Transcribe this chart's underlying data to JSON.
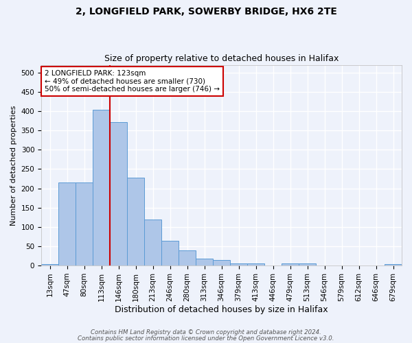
{
  "title": "2, LONGFIELD PARK, SOWERBY BRIDGE, HX6 2TE",
  "subtitle": "Size of property relative to detached houses in Halifax",
  "xlabel": "Distribution of detached houses by size in Halifax",
  "ylabel": "Number of detached properties",
  "categories": [
    "13sqm",
    "47sqm",
    "80sqm",
    "113sqm",
    "146sqm",
    "180sqm",
    "213sqm",
    "246sqm",
    "280sqm",
    "313sqm",
    "346sqm",
    "379sqm",
    "413sqm",
    "446sqm",
    "479sqm",
    "513sqm",
    "546sqm",
    "579sqm",
    "612sqm",
    "646sqm",
    "679sqm"
  ],
  "values": [
    3,
    215,
    215,
    403,
    372,
    228,
    120,
    65,
    40,
    18,
    15,
    6,
    6,
    0,
    5,
    6,
    0,
    0,
    0,
    0,
    3
  ],
  "bar_color": "#aec6e8",
  "bar_edgecolor": "#5b9bd5",
  "background_color": "#eef2fb",
  "grid_color": "#ffffff",
  "red_line_x": 3.5,
  "ylim": [
    0,
    520
  ],
  "yticks": [
    0,
    50,
    100,
    150,
    200,
    250,
    300,
    350,
    400,
    450,
    500
  ],
  "annotation_box_text": "2 LONGFIELD PARK: 123sqm\n← 49% of detached houses are smaller (730)\n50% of semi-detached houses are larger (746) →",
  "annotation_box_color": "#ffffff",
  "annotation_box_edgecolor": "#cc0000",
  "footer_line1": "Contains HM Land Registry data © Crown copyright and database right 2024.",
  "footer_line2": "Contains public sector information licensed under the Open Government Licence v3.0.",
  "title_fontsize": 10,
  "subtitle_fontsize": 9,
  "xlabel_fontsize": 9,
  "ylabel_fontsize": 8,
  "tick_fontsize": 7.5,
  "annotation_fontsize": 7.5
}
